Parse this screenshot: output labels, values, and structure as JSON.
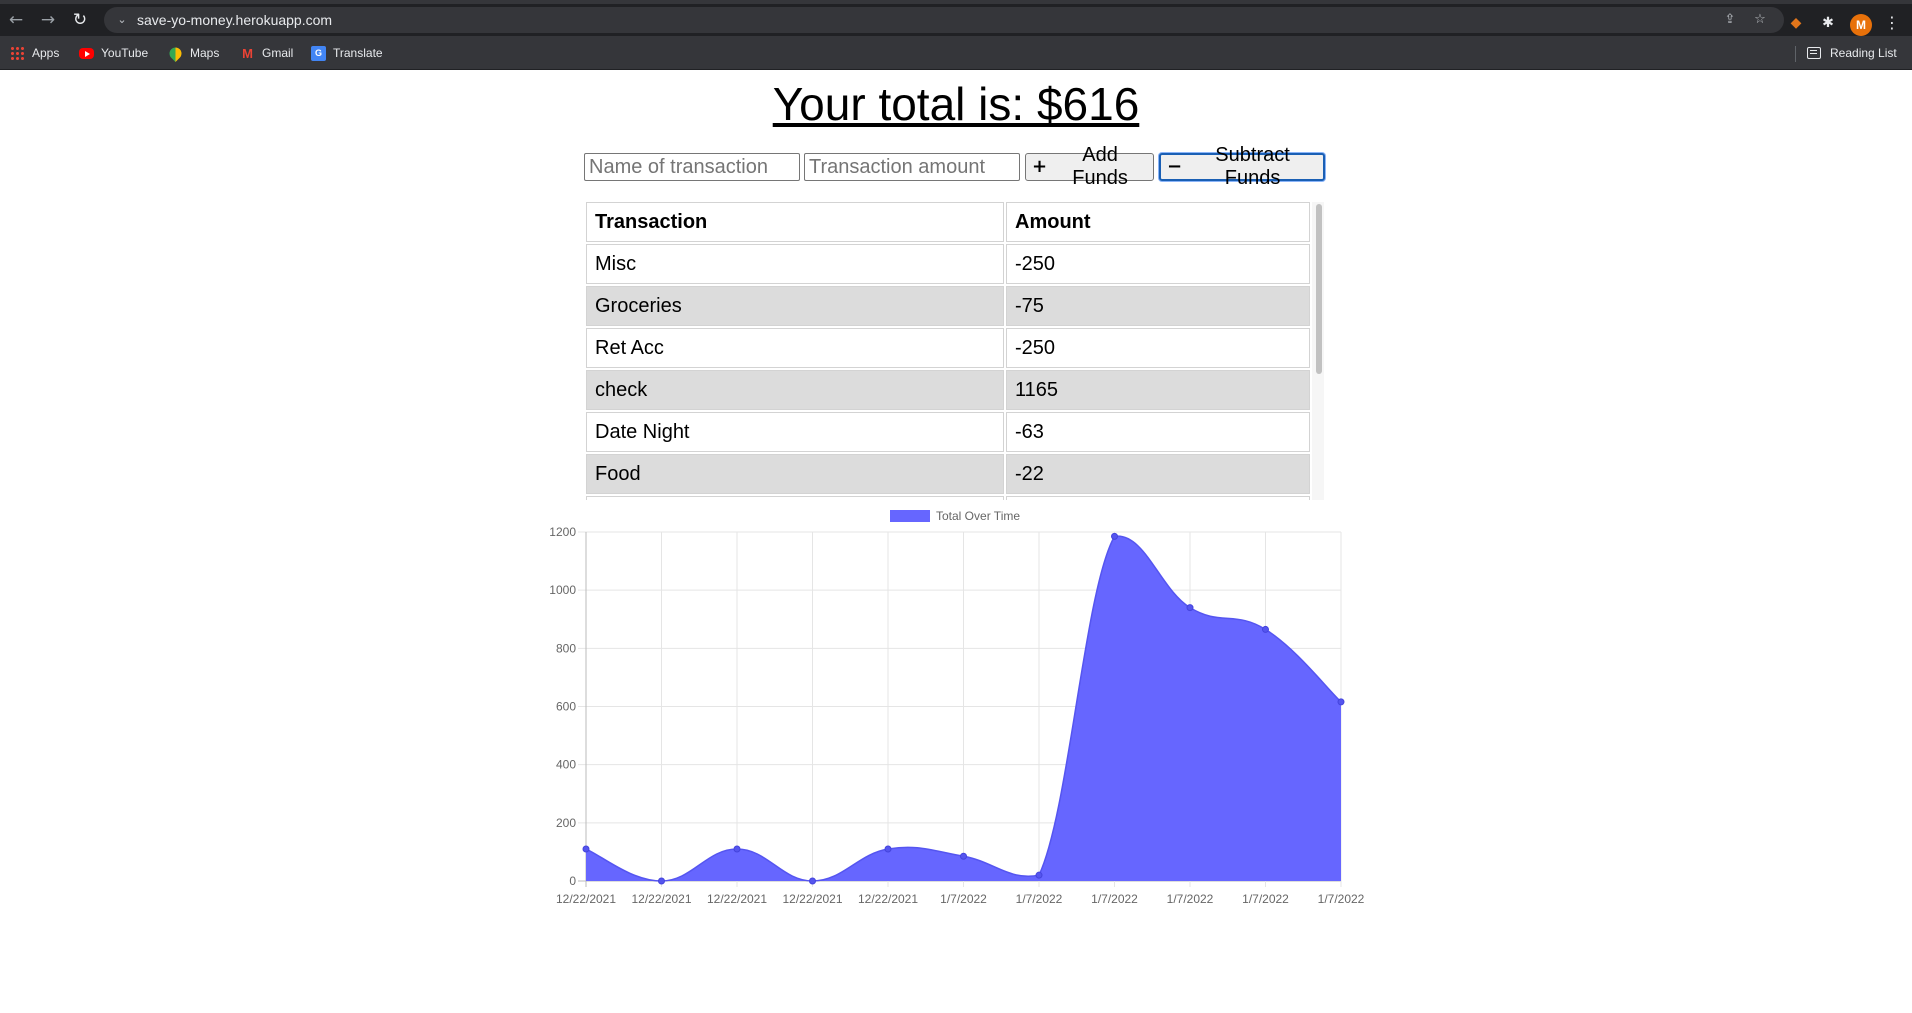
{
  "browser": {
    "url": "save-yo-money.herokuapp.com",
    "bookmarks": [
      {
        "label": "Apps",
        "icon": "apps-grid-icon"
      },
      {
        "label": "YouTube",
        "icon": "youtube-icon"
      },
      {
        "label": "Maps",
        "icon": "maps-icon"
      },
      {
        "label": "Gmail",
        "icon": "gmail-icon"
      },
      {
        "label": "Translate",
        "icon": "translate-icon"
      }
    ],
    "reading_list": "Reading List",
    "profile_initial": "M"
  },
  "page": {
    "title": "Your total is: $616"
  },
  "form": {
    "name_placeholder": "Name of transaction",
    "amount_placeholder": "Transaction amount",
    "add_label": "Add Funds",
    "subtract_label": "Subtract Funds"
  },
  "table": {
    "headers": [
      "Transaction",
      "Amount"
    ],
    "rows": [
      {
        "name": "Misc",
        "amount": "-250"
      },
      {
        "name": "Groceries",
        "amount": "-75"
      },
      {
        "name": "Ret Acc",
        "amount": "-250"
      },
      {
        "name": "check",
        "amount": "1165"
      },
      {
        "name": "Date Night",
        "amount": "-63"
      },
      {
        "name": "Food",
        "amount": "-22"
      }
    ]
  },
  "chart_data": {
    "type": "area",
    "x": [
      "12/22/2021",
      "12/22/2021",
      "12/22/2021",
      "12/22/2021",
      "12/22/2021",
      "1/7/2022",
      "1/7/2022",
      "1/7/2022",
      "1/7/2022",
      "1/7/2022",
      "1/7/2022"
    ],
    "series": [
      {
        "name": "Total Over Time",
        "values": [
          110,
          0,
          110,
          0,
          110,
          85,
          20,
          1185,
          940,
          865,
          616
        ],
        "color": "#6666ff"
      }
    ],
    "ylim": [
      0,
      1200
    ],
    "yticks": [
      0,
      200,
      400,
      600,
      800,
      1000,
      1200
    ],
    "grid": true,
    "legend": "top"
  }
}
